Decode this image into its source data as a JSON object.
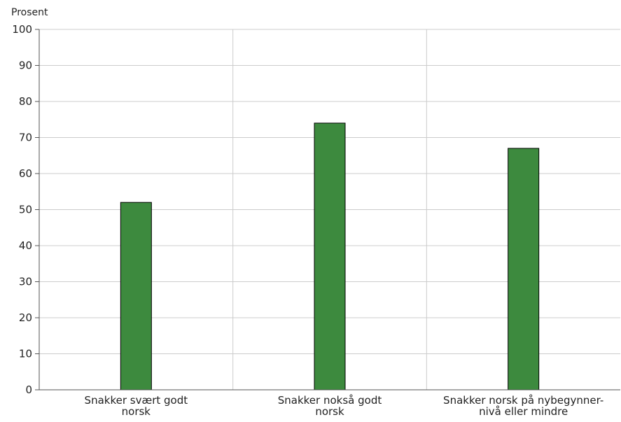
{
  "chart_data": {
    "type": "bar",
    "ylabel": "Prosent",
    "xlabel": "",
    "ylim": [
      0,
      100
    ],
    "yticks": [
      "0",
      "10",
      "20",
      "30",
      "40",
      "50",
      "60",
      "70",
      "80",
      "90",
      "100"
    ],
    "grid": true,
    "categories": [
      [
        "Snakker svært godt",
        "norsk"
      ],
      [
        "Snakker nokså godt",
        "norsk"
      ],
      [
        "Snakker norsk på nybegynner-",
        "nivå eller mindre"
      ]
    ],
    "values": [
      52,
      74,
      67
    ],
    "bar_color": "#3d8a3e",
    "bar_stroke": "#000000",
    "grid_color": "#cccccc"
  }
}
